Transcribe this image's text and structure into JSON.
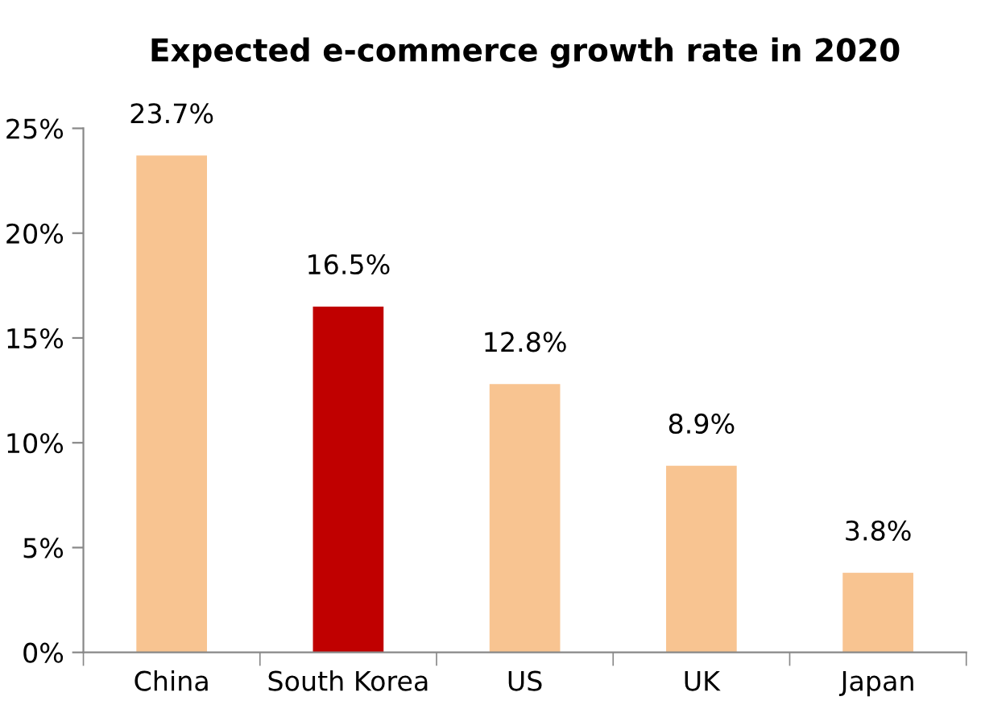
{
  "chart_data": {
    "type": "bar",
    "title": "Expected e-commerce growth rate in 2020",
    "categories": [
      "China",
      "South Korea",
      "US",
      "UK",
      "Japan"
    ],
    "values": [
      23.7,
      16.5,
      12.8,
      8.9,
      3.8
    ],
    "colors": [
      "#f8c491",
      "#c00000",
      "#f8c491",
      "#f8c491",
      "#f8c491"
    ],
    "value_labels": [
      "23.7%",
      "16.5%",
      "12.8%",
      "8.9%",
      "3.8%"
    ],
    "ylim": [
      0,
      25
    ],
    "yticks": [
      {
        "value": 0,
        "label": "0%"
      },
      {
        "value": 5,
        "label": "5%"
      },
      {
        "value": 10,
        "label": "10%"
      },
      {
        "value": 15,
        "label": "15%"
      },
      {
        "value": 20,
        "label": "20%"
      },
      {
        "value": 25,
        "label": "25%"
      }
    ],
    "grid": false
  }
}
